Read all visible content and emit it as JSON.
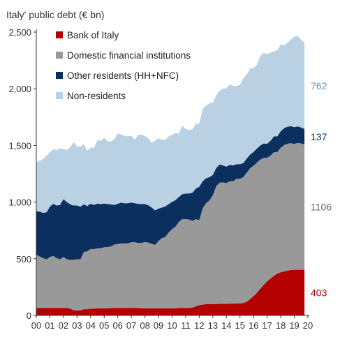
{
  "chart_data": {
    "type": "area",
    "stacked": true,
    "title": "Italy' public debt (€ bn)",
    "ylim": [
      0,
      2500
    ],
    "yticks": [
      "0",
      "500",
      "1,000",
      "1,500",
      "2,000",
      "2,500"
    ],
    "ytick_values": [
      0,
      500,
      1000,
      1500,
      2000,
      2500
    ],
    "xticks": [
      "00",
      "01",
      "02",
      "03",
      "04",
      "05",
      "06",
      "07",
      "08",
      "09",
      "10",
      "11",
      "12",
      "13",
      "14",
      "15",
      "16",
      "17",
      "18",
      "19",
      "20"
    ],
    "x": [
      0,
      0.25,
      0.5,
      0.75,
      1,
      1.25,
      1.5,
      1.75,
      2,
      2.25,
      2.5,
      2.75,
      3,
      3.25,
      3.5,
      3.75,
      4,
      4.25,
      4.5,
      4.75,
      5,
      5.25,
      5.5,
      5.75,
      6,
      6.25,
      6.5,
      6.75,
      7,
      7.25,
      7.5,
      7.75,
      8,
      8.25,
      8.5,
      8.75,
      9,
      9.25,
      9.5,
      9.75,
      10,
      10.25,
      10.5,
      10.75,
      11,
      11.25,
      11.5,
      11.75,
      12,
      12.25,
      12.5,
      12.75,
      13,
      13.25,
      13.5,
      13.75,
      14,
      14.25,
      14.5,
      14.75,
      15,
      15.25,
      15.5,
      15.75,
      16,
      16.25,
      16.5,
      16.75,
      17,
      17.25,
      17.5,
      17.75,
      18,
      18.25,
      18.5,
      18.75,
      19,
      19.25,
      19.5,
      19.75
    ],
    "legend_position": "top-left",
    "series": [
      {
        "name": "Bank of Italy",
        "color": "#b30000",
        "values": [
          65,
          65,
          65,
          65,
          65,
          65,
          65,
          65,
          66,
          65,
          60,
          45,
          45,
          45,
          55,
          55,
          60,
          60,
          62,
          62,
          62,
          63,
          64,
          65,
          65,
          65,
          65,
          65,
          66,
          66,
          64,
          64,
          62,
          62,
          62,
          62,
          62,
          62,
          62,
          62,
          62,
          63,
          65,
          65,
          65,
          66,
          68,
          80,
          90,
          95,
          100,
          100,
          100,
          100,
          102,
          103,
          103,
          104,
          104,
          105,
          105,
          110,
          120,
          145,
          170,
          200,
          235,
          270,
          300,
          325,
          350,
          370,
          380,
          388,
          395,
          400,
          403,
          403,
          403,
          403
        ],
        "end_label": "403"
      },
      {
        "name": "Domestic financial institutions",
        "color": "#999999",
        "values": [
          470,
          455,
          440,
          430,
          450,
          460,
          440,
          430,
          450,
          430,
          430,
          445,
          450,
          450,
          505,
          510,
          525,
          525,
          530,
          530,
          540,
          540,
          545,
          560,
          565,
          570,
          570,
          570,
          580,
          580,
          575,
          575,
          585,
          580,
          570,
          560,
          595,
          620,
          630,
          670,
          700,
          720,
          760,
          785,
          785,
          780,
          765,
          770,
          750,
          850,
          890,
          915,
          960,
          1040,
          1070,
          1070,
          1065,
          1080,
          1080,
          1100,
          1100,
          1110,
          1140,
          1155,
          1150,
          1150,
          1140,
          1120,
          1090,
          1085,
          1090,
          1070,
          1100,
          1115,
          1120,
          1120,
          1110,
          1120,
          1115,
          1106
        ],
        "end_label": "1106"
      },
      {
        "name": "Other residents (HH+NFC)",
        "color": "#0b2f5e",
        "values": [
          385,
          395,
          400,
          415,
          445,
          460,
          465,
          480,
          510,
          505,
          490,
          480,
          475,
          465,
          420,
          400,
          400,
          390,
          395,
          390,
          385,
          380,
          370,
          350,
          355,
          360,
          355,
          355,
          350,
          345,
          345,
          345,
          335,
          330,
          320,
          305,
          285,
          270,
          270,
          250,
          240,
          235,
          220,
          220,
          225,
          230,
          250,
          270,
          295,
          240,
          220,
          205,
          180,
          160,
          160,
          150,
          145,
          145,
          140,
          130,
          130,
          125,
          125,
          120,
          123,
          123,
          125,
          127,
          125,
          130,
          140,
          140,
          145,
          150,
          150,
          150,
          148,
          145,
          140,
          137
        ],
        "end_label": "137"
      },
      {
        "name": "Non-residents",
        "color": "#b9d1e3",
        "values": [
          430,
          450,
          475,
          500,
          480,
          480,
          490,
          500,
          440,
          460,
          505,
          560,
          520,
          530,
          530,
          490,
          495,
          505,
          560,
          560,
          580,
          555,
          555,
          580,
          620,
          600,
          595,
          590,
          590,
          560,
          610,
          610,
          600,
          590,
          570,
          615,
          620,
          600,
          585,
          600,
          590,
          590,
          560,
          605,
          570,
          560,
          560,
          570,
          555,
          640,
          640,
          650,
          640,
          640,
          650,
          680,
          690,
          710,
          700,
          690,
          700,
          750,
          740,
          760,
          740,
          740,
          790,
          800,
          790,
          780,
          750,
          760,
          765,
          730,
          740,
          765,
          800,
          795,
          775,
          762
        ],
        "end_label": "762"
      }
    ]
  }
}
